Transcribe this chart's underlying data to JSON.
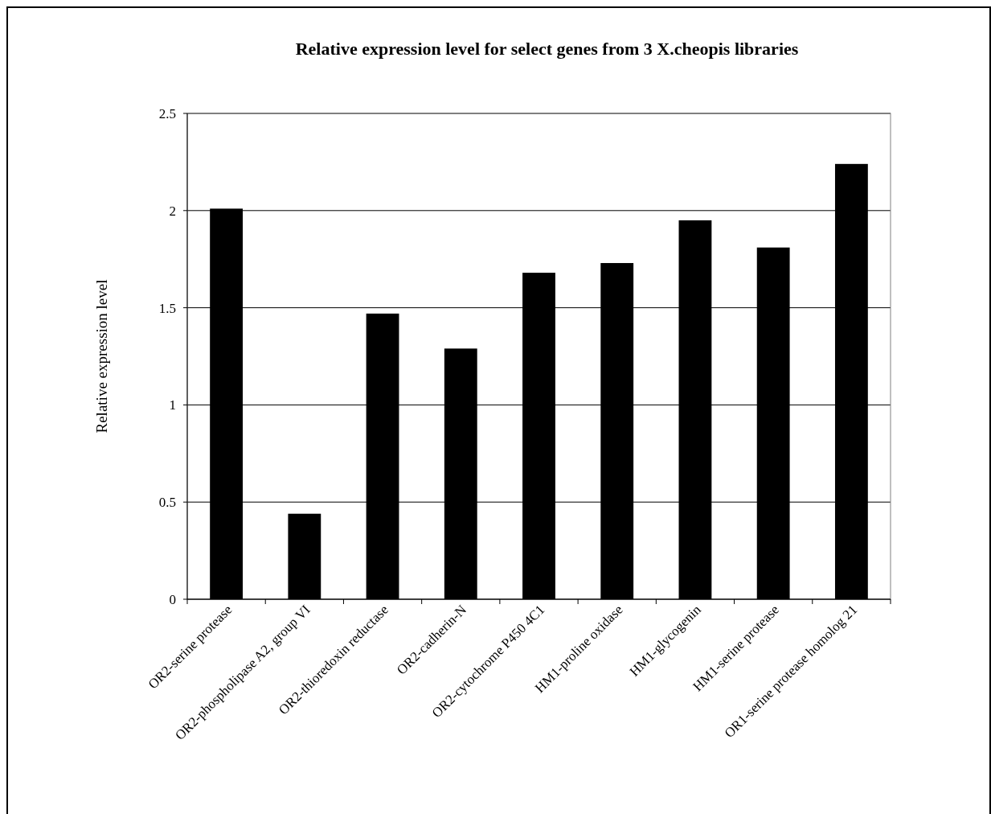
{
  "chart_data": {
    "type": "bar",
    "title": "Relative expression level for select genes from 3 X.cheopis libraries",
    "ylabel": "Relative expression level",
    "categories": [
      "OR2-serine protease",
      "OR2-phospholipase A2, group VI",
      "OR2-thioredoxin reductase",
      "OR2-cadherin-N",
      "OR2-cytochrome P450 4C1",
      "HM1-proline oxidase",
      "HM1-glycogenin",
      "HM1-serine protease",
      "OR1-serine protease homolog 21"
    ],
    "values": [
      2.01,
      0.44,
      1.47,
      1.29,
      1.68,
      1.73,
      1.95,
      1.81,
      2.24
    ],
    "color": "#000000",
    "ylim": [
      0,
      2.5
    ],
    "yticks": [
      0,
      0.5,
      1,
      1.5,
      2,
      2.5
    ],
    "grid": "y"
  }
}
